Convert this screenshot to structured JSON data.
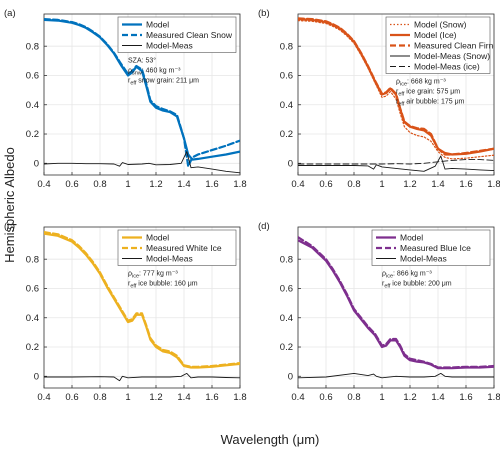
{
  "figure": {
    "ylabel": "Hemispheric Albedo",
    "xlabel": "Wavelength (μm)"
  },
  "chart_data": [
    {
      "type": "line",
      "panel_label": "(a)",
      "x_ticks": [
        0.4,
        0.6,
        0.8,
        1,
        1.2,
        1.4,
        1.6,
        1.8
      ],
      "y_ticks": [
        0,
        0.2,
        0.4,
        0.6,
        0.8
      ],
      "xlim": [
        0.4,
        1.8
      ],
      "ylim": [
        -0.08,
        1.02
      ],
      "grid": true,
      "legend_position": "top-right",
      "legend": [
        "Model",
        "Measured Clean Snow",
        "Model-Meas"
      ],
      "annotations": [
        "SZA: 53°",
        "ρsnw: 460 kg m⁻³",
        "reff snow grain: 211 μm"
      ],
      "series": [
        {
          "name": "Model",
          "color": "#0072bd",
          "style": "solid",
          "x": [
            0.4,
            0.5,
            0.6,
            0.65,
            0.7,
            0.75,
            0.8,
            0.85,
            0.9,
            0.95,
            1.0,
            1.03,
            1.06,
            1.1,
            1.13,
            1.16,
            1.2,
            1.25,
            1.3,
            1.35,
            1.4,
            1.43,
            1.46,
            1.5,
            1.6,
            1.7,
            1.8
          ],
          "y": [
            0.98,
            0.975,
            0.96,
            0.945,
            0.925,
            0.895,
            0.86,
            0.81,
            0.75,
            0.67,
            0.6,
            0.62,
            0.66,
            0.63,
            0.53,
            0.42,
            0.38,
            0.36,
            0.35,
            0.32,
            0.17,
            0.06,
            0.025,
            0.03,
            0.045,
            0.06,
            0.08
          ]
        },
        {
          "name": "Measured Clean Snow",
          "color": "#0072bd",
          "style": "dashed",
          "x": [
            0.4,
            0.5,
            0.6,
            0.65,
            0.7,
            0.75,
            0.8,
            0.85,
            0.9,
            0.95,
            1.0,
            1.03,
            1.06,
            1.1,
            1.13,
            1.16,
            1.2,
            1.25,
            1.3,
            1.35,
            1.4,
            1.43,
            1.46,
            1.5,
            1.6,
            1.7,
            1.8
          ],
          "y": [
            0.985,
            0.98,
            0.965,
            0.95,
            0.93,
            0.9,
            0.865,
            0.815,
            0.755,
            0.68,
            0.61,
            0.63,
            0.665,
            0.64,
            0.545,
            0.43,
            0.39,
            0.37,
            0.355,
            0.33,
            0.17,
            -0.02,
            0.04,
            0.06,
            0.09,
            0.12,
            0.155
          ]
        },
        {
          "name": "Model-Meas",
          "color": "#1a1a1a",
          "style": "solid",
          "x": [
            0.4,
            0.5,
            0.6,
            0.7,
            0.8,
            0.9,
            0.94,
            0.96,
            1.0,
            1.1,
            1.15,
            1.2,
            1.3,
            1.38,
            1.42,
            1.45,
            1.5,
            1.6,
            1.7,
            1.8
          ],
          "y": [
            -0.005,
            0.0,
            0.0,
            -0.003,
            -0.003,
            -0.005,
            -0.02,
            0.005,
            -0.008,
            -0.005,
            0.0,
            -0.01,
            -0.008,
            0.0,
            0.08,
            -0.03,
            -0.025,
            -0.04,
            -0.055,
            -0.065
          ]
        }
      ]
    },
    {
      "type": "line",
      "panel_label": "(b)",
      "x_ticks": [
        0.4,
        0.6,
        0.8,
        1,
        1.2,
        1.4,
        1.6,
        1.8
      ],
      "y_ticks": [
        0,
        0.2,
        0.4,
        0.6,
        0.8
      ],
      "xlim": [
        0.4,
        1.8
      ],
      "ylim": [
        -0.08,
        1.02
      ],
      "grid": true,
      "legend_position": "top-right",
      "legend": [
        "Model (Snow)",
        "Model (Ice)",
        "Measured Clean Firn",
        "Model-Meas (Snow)",
        "Model-Meas (ice)"
      ],
      "annotations": [
        "ρice: 668 kg m⁻³",
        "reff ice grain: 575 μm",
        "reff air bubble: 175 μm"
      ],
      "series": [
        {
          "name": "Model (Snow)",
          "color": "#d95319",
          "style": "dotted",
          "x": [
            0.4,
            0.5,
            0.6,
            0.65,
            0.7,
            0.75,
            0.8,
            0.85,
            0.9,
            0.95,
            1.0,
            1.03,
            1.06,
            1.1,
            1.13,
            1.16,
            1.2,
            1.25,
            1.3,
            1.35,
            1.4,
            1.45,
            1.5,
            1.6,
            1.7,
            1.8
          ],
          "y": [
            0.975,
            0.97,
            0.955,
            0.935,
            0.91,
            0.87,
            0.82,
            0.74,
            0.65,
            0.55,
            0.45,
            0.46,
            0.49,
            0.44,
            0.34,
            0.25,
            0.21,
            0.19,
            0.18,
            0.15,
            0.08,
            0.04,
            0.03,
            0.035,
            0.045,
            0.055
          ]
        },
        {
          "name": "Model (Ice)",
          "color": "#d95319",
          "style": "solid",
          "x": [
            0.4,
            0.5,
            0.6,
            0.65,
            0.7,
            0.75,
            0.8,
            0.85,
            0.9,
            0.95,
            1.0,
            1.03,
            1.06,
            1.1,
            1.13,
            1.16,
            1.2,
            1.25,
            1.3,
            1.35,
            1.4,
            1.45,
            1.5,
            1.6,
            1.7,
            1.8
          ],
          "y": [
            0.985,
            0.98,
            0.965,
            0.945,
            0.92,
            0.88,
            0.83,
            0.75,
            0.66,
            0.56,
            0.47,
            0.48,
            0.51,
            0.47,
            0.37,
            0.28,
            0.25,
            0.235,
            0.225,
            0.19,
            0.1,
            0.07,
            0.06,
            0.065,
            0.08,
            0.1
          ]
        },
        {
          "name": "Measured Clean Firn",
          "color": "#d95319",
          "style": "dashed",
          "x": [
            0.4,
            0.5,
            0.6,
            0.65,
            0.7,
            0.75,
            0.8,
            0.85,
            0.9,
            0.95,
            1.0,
            1.03,
            1.06,
            1.1,
            1.13,
            1.16,
            1.2,
            1.25,
            1.3,
            1.35,
            1.4,
            1.45,
            1.5,
            1.6,
            1.7,
            1.8
          ],
          "y": [
            0.99,
            0.985,
            0.97,
            0.95,
            0.925,
            0.885,
            0.835,
            0.755,
            0.665,
            0.565,
            0.475,
            0.485,
            0.515,
            0.475,
            0.375,
            0.285,
            0.255,
            0.24,
            0.235,
            0.2,
            0.1,
            0.06,
            0.06,
            0.07,
            0.085,
            0.1
          ]
        },
        {
          "name": "Model-Meas (Snow)",
          "color": "#1a1a1a",
          "style": "solid",
          "x": [
            0.4,
            0.6,
            0.8,
            0.9,
            0.94,
            0.96,
            1.0,
            1.1,
            1.2,
            1.3,
            1.38,
            1.42,
            1.45,
            1.5,
            1.6,
            1.7,
            1.8
          ],
          "y": [
            -0.015,
            -0.015,
            -0.015,
            -0.018,
            -0.04,
            -0.01,
            -0.025,
            -0.035,
            -0.045,
            -0.055,
            -0.02,
            0.05,
            -0.04,
            -0.035,
            -0.04,
            -0.045,
            -0.05
          ]
        },
        {
          "name": "Model-Meas (ice)",
          "color": "#1a1a1a",
          "style": "dashed",
          "x": [
            0.4,
            0.6,
            0.8,
            0.9,
            1.0,
            1.1,
            1.2,
            1.3,
            1.4,
            1.45,
            1.5,
            1.6,
            1.7,
            1.8
          ],
          "y": [
            -0.005,
            -0.005,
            -0.005,
            -0.005,
            -0.005,
            -0.003,
            -0.005,
            0.0,
            0.01,
            0.015,
            0.02,
            0.025,
            0.025,
            0.02
          ]
        }
      ]
    },
    {
      "type": "line",
      "panel_label": "(c)",
      "x_ticks": [
        0.4,
        0.6,
        0.8,
        1,
        1.2,
        1.4,
        1.6,
        1.8
      ],
      "y_ticks": [
        0,
        0.2,
        0.4,
        0.6,
        0.8
      ],
      "xlim": [
        0.4,
        1.8
      ],
      "ylim": [
        -0.08,
        1.02
      ],
      "grid": true,
      "legend_position": "top-right",
      "legend": [
        "Model",
        "Measured White Ice",
        "Model-Meas"
      ],
      "annotations": [
        "ρice: 777 kg m⁻³",
        "reff ice bubble: 160 μm"
      ],
      "series": [
        {
          "name": "Model",
          "color": "#edb120",
          "style": "solid",
          "x": [
            0.4,
            0.5,
            0.6,
            0.65,
            0.7,
            0.75,
            0.8,
            0.85,
            0.9,
            0.95,
            1.0,
            1.03,
            1.06,
            1.1,
            1.13,
            1.16,
            1.2,
            1.25,
            1.3,
            1.35,
            1.4,
            1.45,
            1.5,
            1.6,
            1.7,
            1.8
          ],
          "y": [
            0.975,
            0.96,
            0.92,
            0.88,
            0.83,
            0.77,
            0.7,
            0.61,
            0.53,
            0.45,
            0.37,
            0.38,
            0.42,
            0.42,
            0.34,
            0.25,
            0.2,
            0.17,
            0.16,
            0.13,
            0.07,
            0.06,
            0.06,
            0.065,
            0.075,
            0.085
          ]
        },
        {
          "name": "Measured White Ice",
          "color": "#edb120",
          "style": "dashed",
          "x": [
            0.4,
            0.5,
            0.6,
            0.65,
            0.7,
            0.75,
            0.8,
            0.85,
            0.9,
            0.95,
            1.0,
            1.03,
            1.06,
            1.1,
            1.13,
            1.16,
            1.2,
            1.25,
            1.3,
            1.35,
            1.4,
            1.45,
            1.5,
            1.6,
            1.7,
            1.8
          ],
          "y": [
            0.985,
            0.97,
            0.93,
            0.89,
            0.84,
            0.78,
            0.71,
            0.62,
            0.54,
            0.46,
            0.38,
            0.39,
            0.43,
            0.43,
            0.35,
            0.26,
            0.21,
            0.18,
            0.17,
            0.14,
            0.075,
            0.065,
            0.065,
            0.07,
            0.08,
            0.09
          ]
        },
        {
          "name": "Model-Meas",
          "color": "#1a1a1a",
          "style": "solid",
          "x": [
            0.4,
            0.6,
            0.8,
            0.9,
            0.94,
            0.96,
            1.0,
            1.1,
            1.2,
            1.3,
            1.38,
            1.42,
            1.45,
            1.5,
            1.6,
            1.7,
            1.8
          ],
          "y": [
            -0.005,
            -0.005,
            -0.003,
            -0.005,
            -0.03,
            0.0,
            -0.01,
            -0.005,
            -0.005,
            -0.005,
            0.0,
            0.02,
            -0.01,
            -0.005,
            -0.005,
            -0.008,
            -0.01
          ]
        }
      ]
    },
    {
      "type": "line",
      "panel_label": "(d)",
      "x_ticks": [
        0.4,
        0.6,
        0.8,
        1,
        1.2,
        1.4,
        1.6,
        1.8
      ],
      "y_ticks": [
        0,
        0.2,
        0.4,
        0.6,
        0.8
      ],
      "xlim": [
        0.4,
        1.8
      ],
      "ylim": [
        -0.08,
        1.02
      ],
      "grid": true,
      "legend_position": "top-right",
      "legend": [
        "Model",
        "Measured Blue Ice",
        "Model-Meas"
      ],
      "annotations": [
        "ρice: 866 kg m⁻³",
        "reff ice bubble: 200 μm"
      ],
      "series": [
        {
          "name": "Model",
          "color": "#7e2f8e",
          "style": "solid",
          "x": [
            0.4,
            0.5,
            0.6,
            0.65,
            0.7,
            0.75,
            0.8,
            0.85,
            0.9,
            0.95,
            1.0,
            1.03,
            1.06,
            1.1,
            1.13,
            1.16,
            1.2,
            1.25,
            1.3,
            1.35,
            1.4,
            1.45,
            1.5,
            1.6,
            1.7,
            1.8
          ],
          "y": [
            0.93,
            0.88,
            0.79,
            0.72,
            0.64,
            0.55,
            0.45,
            0.39,
            0.33,
            0.28,
            0.2,
            0.21,
            0.245,
            0.245,
            0.2,
            0.14,
            0.11,
            0.1,
            0.095,
            0.08,
            0.055,
            0.055,
            0.055,
            0.06,
            0.06,
            0.065
          ]
        },
        {
          "name": "Measured Blue Ice",
          "color": "#7e2f8e",
          "style": "dashed",
          "x": [
            0.4,
            0.5,
            0.6,
            0.65,
            0.7,
            0.75,
            0.8,
            0.85,
            0.9,
            0.95,
            1.0,
            1.03,
            1.06,
            1.1,
            1.13,
            1.16,
            1.2,
            1.25,
            1.3,
            1.35,
            1.4,
            1.45,
            1.5,
            1.6,
            1.7,
            1.8
          ],
          "y": [
            0.95,
            0.89,
            0.8,
            0.73,
            0.65,
            0.56,
            0.46,
            0.4,
            0.34,
            0.29,
            0.21,
            0.22,
            0.255,
            0.255,
            0.21,
            0.15,
            0.12,
            0.11,
            0.1,
            0.085,
            0.06,
            0.06,
            0.06,
            0.065,
            0.065,
            0.07
          ]
        },
        {
          "name": "Model-Meas",
          "color": "#1a1a1a",
          "style": "solid",
          "x": [
            0.4,
            0.6,
            0.8,
            0.9,
            0.94,
            0.96,
            1.0,
            1.1,
            1.2,
            1.3,
            1.38,
            1.42,
            1.45,
            1.5,
            1.6,
            1.7,
            1.8
          ],
          "y": [
            -0.01,
            -0.005,
            0.02,
            0.005,
            0.015,
            0.0,
            -0.01,
            0.0,
            -0.005,
            -0.005,
            0.0,
            0.02,
            0.0,
            -0.005,
            -0.005,
            -0.005,
            -0.005
          ]
        }
      ]
    }
  ]
}
